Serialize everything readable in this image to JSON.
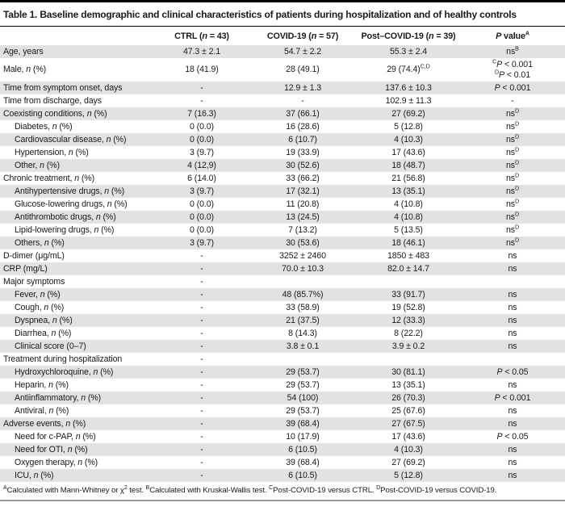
{
  "colors": {
    "stripe": "#e2e2e2",
    "top_bar": "#000000",
    "title_rule": "#000000",
    "bottom_rule": "#9b9b9b",
    "text": "#1a1a1a"
  },
  "table": {
    "title": "Table 1. Baseline demographic and clinical characteristics of patients during hospitalization and of healthy controls",
    "columns": [
      "",
      "CTRL (*n* = 43)",
      "COVID-19 (*n* = 57)",
      "Post–COVID-19 (*n* = 39)",
      "*P* value^A^"
    ],
    "rows": [
      {
        "label": "Age, years",
        "indent": 0,
        "cells": [
          "47.3 ± 2.1",
          "54.7 ± 2.2",
          "55.3 ± 2.4",
          "ns^B^"
        ]
      },
      {
        "label": "Male, *n* (%)",
        "indent": 0,
        "cells": [
          "18 (41.9)",
          "28 (49.1)",
          "29 (74.4)^C,D^",
          "^C^*P* < 0.001\n^D^*P* < 0.01"
        ]
      },
      {
        "label": "Time from symptom onset, days",
        "indent": 0,
        "cells": [
          "-",
          "12.9 ± 1.3",
          "137.6 ± 10.3",
          "*P* < 0.001"
        ]
      },
      {
        "label": "Time from discharge, days",
        "indent": 0,
        "cells": [
          "-",
          "-",
          "102.9 ± 11.3",
          "-"
        ]
      },
      {
        "label": "Coexisting conditions, *n* (%)",
        "indent": 0,
        "cells": [
          "7 (16.3)",
          "37 (66.1)",
          "27 (69.2)",
          "ns^D^"
        ]
      },
      {
        "label": "Diabetes, *n* (%)",
        "indent": 1,
        "cells": [
          "0 (0.0)",
          "16 (28.6)",
          "5 (12.8)",
          "ns^D^"
        ]
      },
      {
        "label": "Cardiovascular disease, *n* (%)",
        "indent": 1,
        "cells": [
          "0 (0.0)",
          "6 (10.7)",
          "4 (10.3)",
          "ns^D^"
        ]
      },
      {
        "label": "Hypertension, *n* (%)",
        "indent": 1,
        "cells": [
          "3 (9.7)",
          "19 (33.9)",
          "17 (43.6)",
          "ns^D^"
        ]
      },
      {
        "label": "Other, *n* (%)",
        "indent": 1,
        "cells": [
          "4 (12,9)",
          "30 (52.6)",
          "18 (48.7)",
          "ns^D^"
        ]
      },
      {
        "label": "Chronic treatment, *n* (%)",
        "indent": 0,
        "cells": [
          "6 (14.0)",
          "33 (66.2)",
          "21 (56.8)",
          "ns^D^"
        ]
      },
      {
        "label": "Antihypertensive drugs, *n* (%)",
        "indent": 1,
        "cells": [
          "3 (9.7)",
          "17 (32.1)",
          "13 (35.1)",
          "ns^D^"
        ]
      },
      {
        "label": "Glucose-lowering drugs, *n* (%)",
        "indent": 1,
        "cells": [
          "0 (0.0)",
          "11 (20.8)",
          "4 (10.8)",
          "ns^D^"
        ]
      },
      {
        "label": "Antithrombotic drugs, *n* (%)",
        "indent": 1,
        "cells": [
          "0 (0.0)",
          "13 (24.5)",
          "4 (10.8)",
          "ns^D^"
        ]
      },
      {
        "label": "Lipid-lowering drugs, *n* (%)",
        "indent": 1,
        "cells": [
          "0 (0.0)",
          "7 (13.2)",
          "5 (13.5)",
          "ns^D^"
        ]
      },
      {
        "label": "Others, *n* (%)",
        "indent": 1,
        "cells": [
          "3 (9.7)",
          "30 (53.6)",
          "18 (46.1)",
          "ns^D^"
        ]
      },
      {
        "label": "D-dimer (μg/mL)",
        "indent": 0,
        "cells": [
          "-",
          "3252 ± 2460",
          "1850 ± 483",
          "ns"
        ]
      },
      {
        "label": "CRP (mg/L)",
        "indent": 0,
        "cells": [
          "-",
          "70.0 ± 10.3",
          "82.0 ± 14.7",
          "ns"
        ]
      },
      {
        "label": "Major symptoms",
        "indent": 0,
        "cells": [
          "-",
          "",
          "",
          ""
        ]
      },
      {
        "label": "Fever, *n* (%)",
        "indent": 1,
        "cells": [
          "-",
          "48 (85.7%)",
          "33 (91.7)",
          "ns"
        ]
      },
      {
        "label": "Cough, *n* (%)",
        "indent": 1,
        "cells": [
          "-",
          "33 (58.9)",
          "19 (52.8)",
          "ns"
        ]
      },
      {
        "label": "Dyspnea, *n* (%)",
        "indent": 1,
        "cells": [
          "-",
          "21 (37.5)",
          "12 (33.3)",
          "ns"
        ]
      },
      {
        "label": "Diarrhea, *n* (%)",
        "indent": 1,
        "cells": [
          "-",
          "8 (14.3)",
          "8 (22.2)",
          "ns"
        ]
      },
      {
        "label": "Clinical score (0–7)",
        "indent": 1,
        "cells": [
          "-",
          "3.8 ± 0.1",
          "3.9 ± 0.2",
          "ns"
        ]
      },
      {
        "label": "Treatment during hospitalization",
        "indent": 0,
        "cells": [
          "-",
          "",
          "",
          ""
        ]
      },
      {
        "label": "Hydroxychloroquine, *n* (%)",
        "indent": 1,
        "cells": [
          "-",
          "29 (53.7)",
          "30 (81.1)",
          "*P* < 0.05"
        ]
      },
      {
        "label": "Heparin, *n* (%)",
        "indent": 1,
        "cells": [
          "-",
          "29 (53.7)",
          "13 (35.1)",
          "ns"
        ]
      },
      {
        "label": "Antiinflammatory, *n* (%)",
        "indent": 1,
        "cells": [
          "-",
          "54 (100)",
          "26 (70.3)",
          "*P* < 0.001"
        ]
      },
      {
        "label": "Antiviral, *n* (%)",
        "indent": 1,
        "cells": [
          "-",
          "29 (53.7)",
          "25 (67.6)",
          "ns"
        ]
      },
      {
        "label": "Adverse events, *n* (%)",
        "indent": 0,
        "cells": [
          "-",
          "39 (68.4)",
          "27 (67.5)",
          "ns"
        ]
      },
      {
        "label": "Need for c-PAP, *n* (%)",
        "indent": 1,
        "cells": [
          "-",
          "10 (17.9)",
          "17 (43.6)",
          "*P* < 0.05"
        ]
      },
      {
        "label": "Need for OTI, *n* (%)",
        "indent": 1,
        "cells": [
          "-",
          "6 (10.5)",
          "4 (10.3)",
          "ns"
        ]
      },
      {
        "label": "Oxygen therapy, *n* (%)",
        "indent": 1,
        "cells": [
          "-",
          "39 (68.4)",
          "27 (69.2)",
          "ns"
        ]
      },
      {
        "label": "ICU, *n* (%)",
        "indent": 1,
        "cells": [
          "-",
          "6 (10.5)",
          "5 (12.8)",
          "ns"
        ]
      }
    ],
    "footnote": "^A^Calculated with Mann-Whitney or χ^2^ test. ^B^Calculated with Kruskal-Wallis test. ^C^Post-COVID-19 versus CTRL. ^D^Post-COVID-19 versus COVID-19."
  }
}
